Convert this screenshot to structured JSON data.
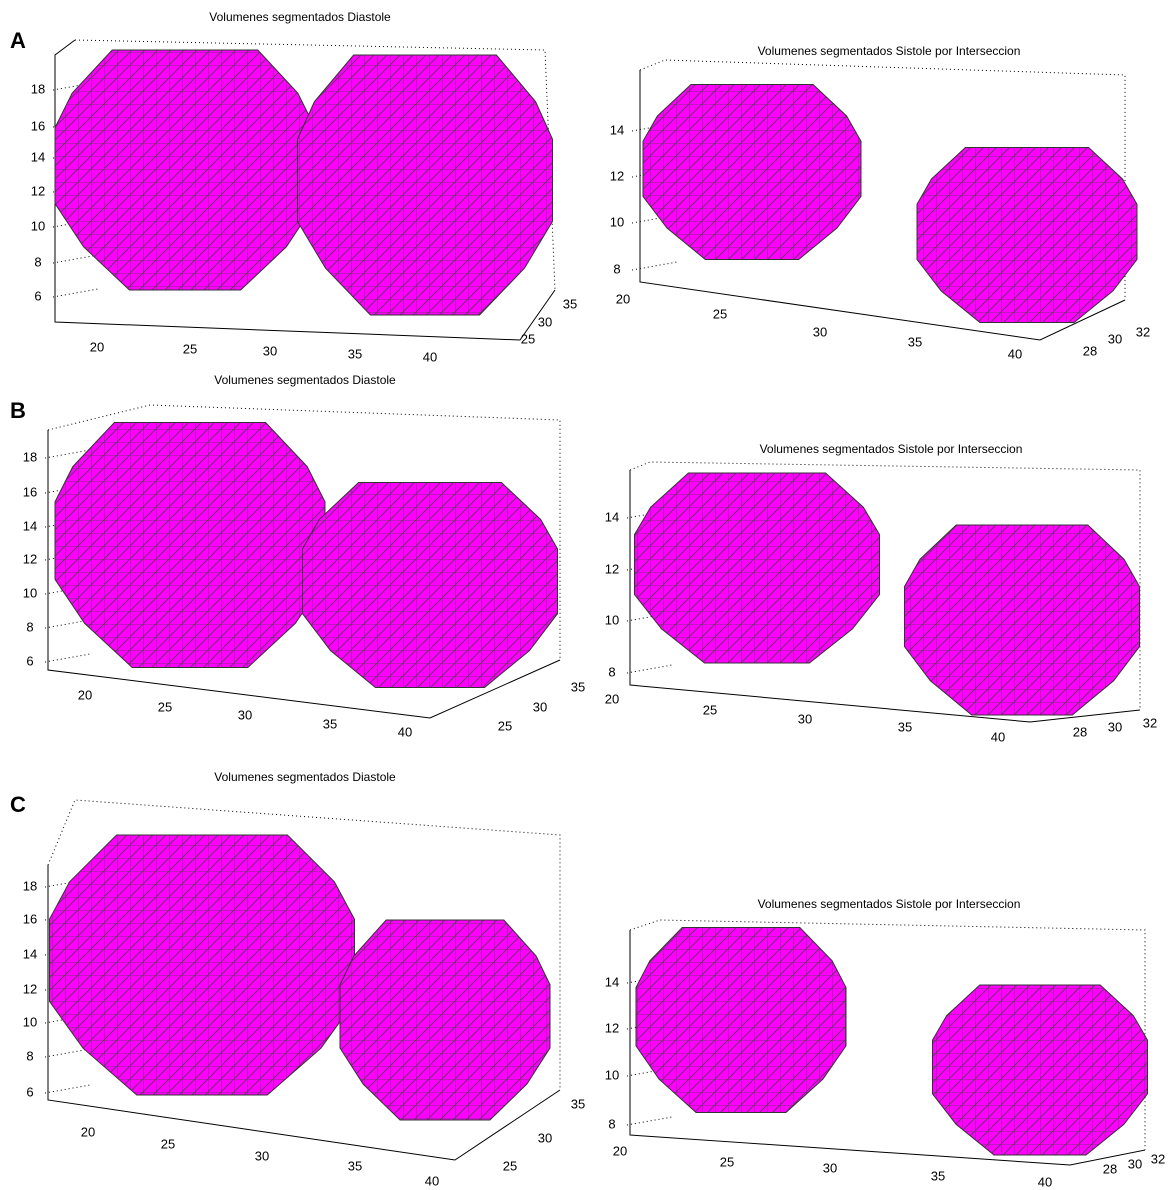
{
  "panels": [
    {
      "label": "A",
      "plots": [
        {
          "title": "Volumenes segmentados Diastole",
          "zticks": [
            18,
            16,
            14,
            12,
            10,
            8,
            6
          ],
          "xticks": [
            20,
            25,
            30,
            35,
            40
          ],
          "yticks": [
            35,
            30,
            25
          ]
        },
        {
          "title": "Volumenes segmentados Sistole por Interseccion",
          "zticks": [
            14,
            12,
            10,
            8
          ],
          "xticks": [
            20,
            25,
            30,
            35,
            40
          ],
          "yticks": [
            32,
            30,
            28
          ]
        }
      ]
    },
    {
      "label": "B",
      "plots": [
        {
          "title": "Volumenes segmentados Diastole",
          "zticks": [
            18,
            16,
            14,
            12,
            10,
            8,
            6
          ],
          "xticks": [
            20,
            25,
            30,
            35,
            40
          ],
          "yticks": [
            35,
            30,
            25
          ]
        },
        {
          "title": "Volumenes segmentados Sistole por Interseccion",
          "zticks": [
            14,
            12,
            10,
            8
          ],
          "xticks": [
            20,
            25,
            30,
            35,
            40
          ],
          "yticks": [
            32,
            30,
            28
          ]
        }
      ]
    },
    {
      "label": "C",
      "plots": [
        {
          "title": "Volumenes segmentados Diastole",
          "zticks": [
            18,
            16,
            14,
            12,
            10,
            8,
            6
          ],
          "xticks": [
            20,
            25,
            30,
            35,
            40
          ],
          "yticks": [
            35,
            30,
            25
          ]
        },
        {
          "title": "Volumenes segmentados Sistole por Interseccion",
          "zticks": [
            14,
            12,
            10,
            8
          ],
          "xticks": [
            20,
            25,
            30,
            35,
            40
          ],
          "yticks": [
            32,
            30,
            28
          ]
        }
      ]
    }
  ]
}
